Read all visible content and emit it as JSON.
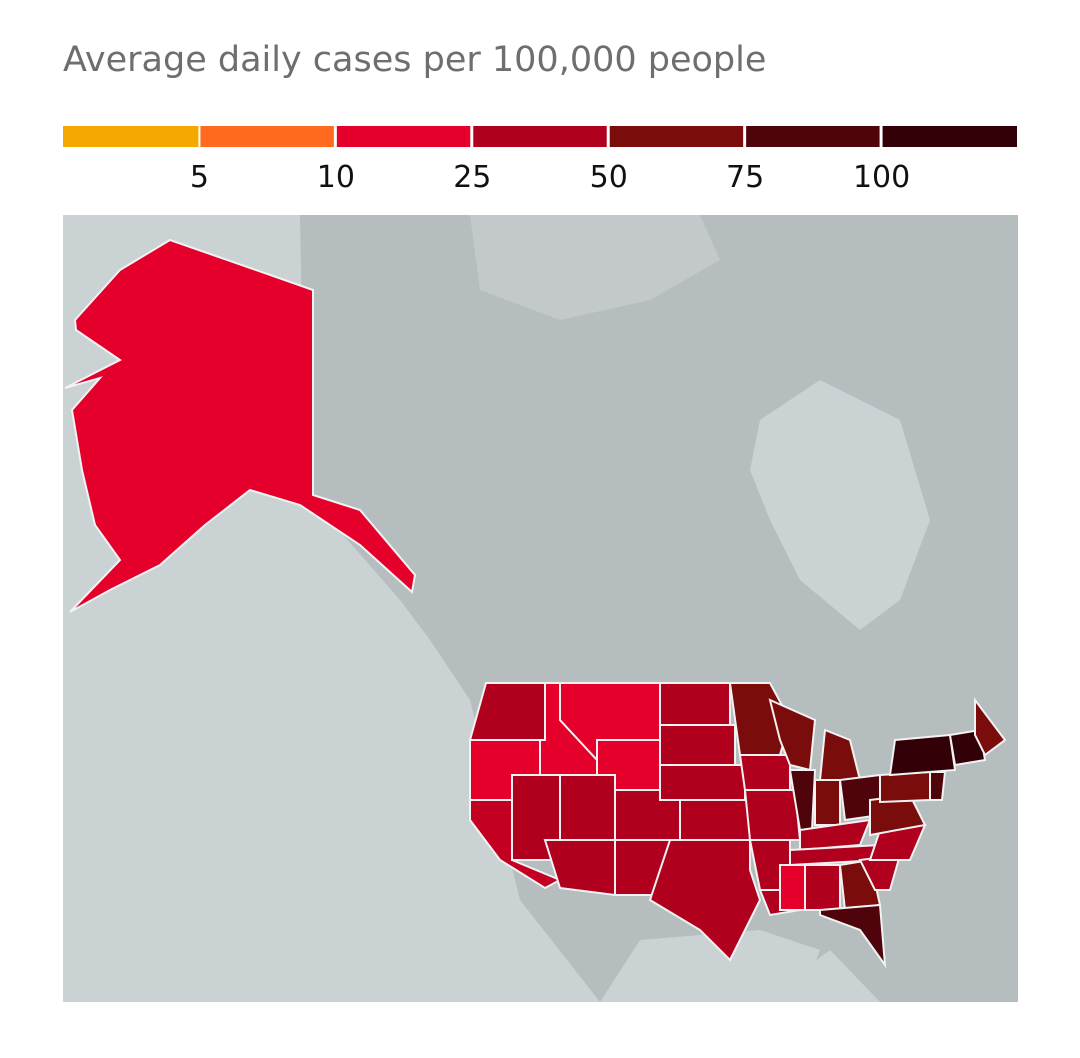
{
  "title": "Average daily cases per 100,000 people",
  "legend": {
    "colors": [
      "#f5a800",
      "#ff6a1e",
      "#e4002b",
      "#b0001e",
      "#7a0c0c",
      "#4e040a",
      "#320006"
    ],
    "thresholds": [
      5,
      10,
      25,
      50,
      75,
      100
    ]
  }
}
